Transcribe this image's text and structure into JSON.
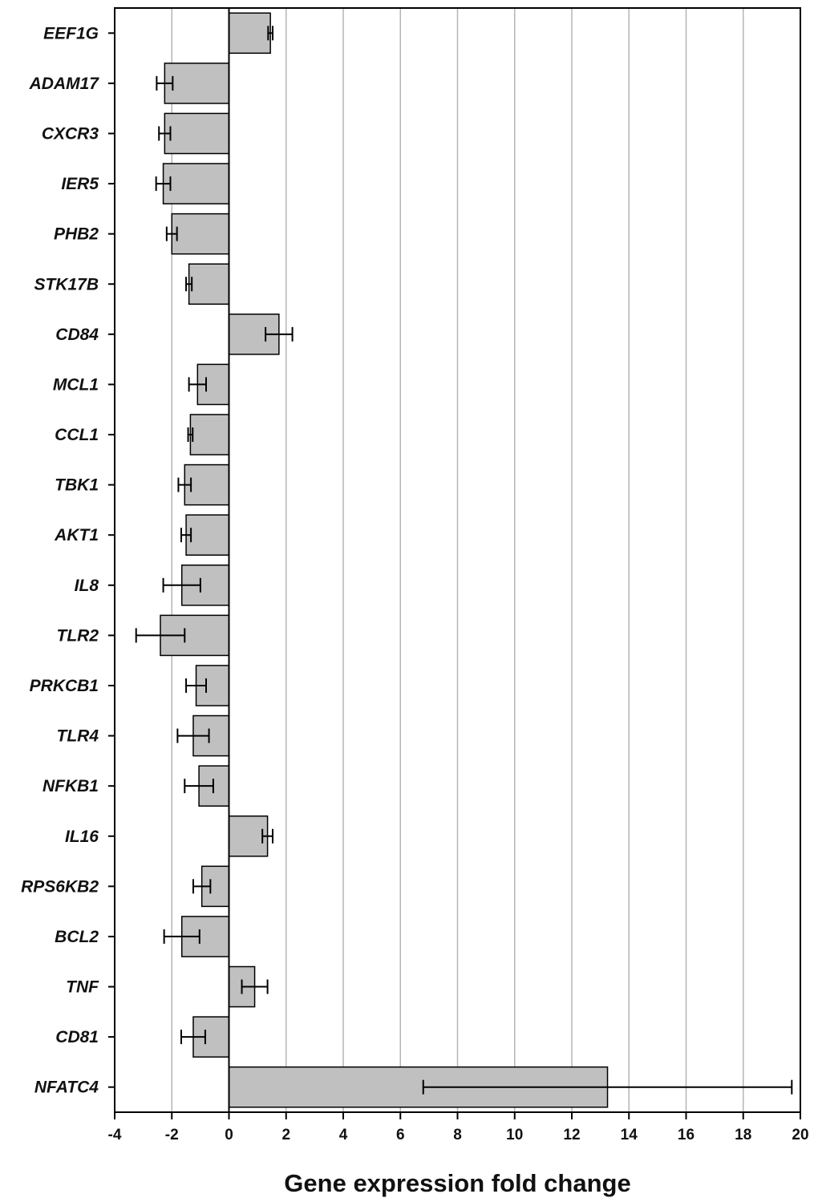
{
  "chart_data": {
    "type": "bar",
    "orientation": "horizontal",
    "xlabel": "Gene expression fold change",
    "ylabel": "",
    "title": "",
    "xlim": [
      -4,
      20
    ],
    "xticks": [
      -4,
      -2,
      0,
      2,
      4,
      6,
      8,
      10,
      12,
      14,
      16,
      18,
      20
    ],
    "grid": "vertical",
    "bar_color": "#c0c0c0",
    "categories": [
      "EEF1G",
      "ADAM17",
      "CXCR3",
      "IER5",
      "PHB2",
      "STK17B",
      "CD84",
      "MCL1",
      "CCL1",
      "TBK1",
      "AKT1",
      "IL8",
      "TLR2",
      "PRKCB1",
      "TLR4",
      "NFKB1",
      "IL16",
      "RPS6KB2",
      "BCL2",
      "TNF",
      "CD81",
      "NFATC4"
    ],
    "values": [
      1.45,
      -2.25,
      -2.25,
      -2.3,
      -2.0,
      -1.4,
      1.75,
      -1.1,
      -1.35,
      -1.55,
      -1.5,
      -1.65,
      -2.4,
      -1.15,
      -1.25,
      -1.05,
      1.35,
      -0.95,
      -1.65,
      0.9,
      -1.25,
      13.25
    ],
    "error": [
      0.08,
      0.28,
      0.2,
      0.25,
      0.18,
      0.1,
      0.47,
      0.3,
      0.08,
      0.22,
      0.17,
      0.65,
      0.85,
      0.35,
      0.55,
      0.5,
      0.18,
      0.3,
      0.62,
      0.45,
      0.42,
      6.45
    ]
  }
}
